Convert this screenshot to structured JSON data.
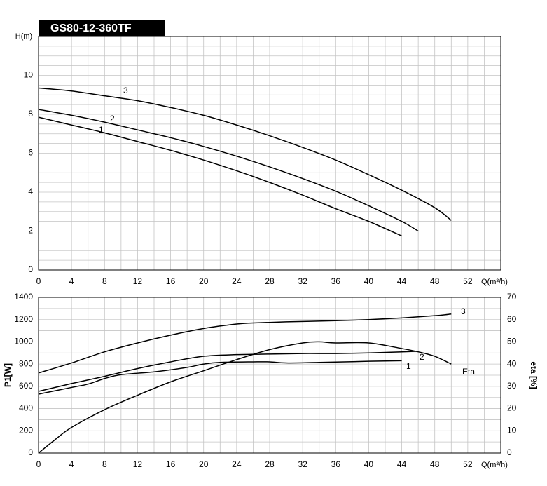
{
  "chart_data": [
    {
      "type": "line",
      "title": "GS80-12-360TF",
      "x_label": "Q(m³/h)",
      "y_label": "H(m)",
      "xlim": [
        0,
        56
      ],
      "xticks": [
        0,
        4,
        8,
        12,
        16,
        20,
        24,
        28,
        32,
        36,
        40,
        44,
        48,
        52
      ],
      "ylim": [
        0,
        12
      ],
      "yticks": [
        0,
        2,
        4,
        6,
        8,
        10
      ],
      "grid": true,
      "series": [
        {
          "name": "1",
          "color": "#000000",
          "x": [
            0,
            4,
            8,
            12,
            16,
            20,
            24,
            28,
            32,
            36,
            40,
            44
          ],
          "values": [
            7.85,
            7.45,
            7.05,
            6.6,
            6.15,
            5.65,
            5.1,
            4.5,
            3.85,
            3.15,
            2.5,
            1.75
          ]
        },
        {
          "name": "2",
          "color": "#000000",
          "x": [
            0,
            4,
            8,
            12,
            16,
            20,
            24,
            28,
            32,
            36,
            40,
            44,
            46
          ],
          "values": [
            8.25,
            7.95,
            7.6,
            7.2,
            6.8,
            6.35,
            5.85,
            5.3,
            4.7,
            4.05,
            3.3,
            2.5,
            2.0
          ]
        },
        {
          "name": "3",
          "color": "#000000",
          "x": [
            0,
            4,
            8,
            12,
            16,
            20,
            24,
            28,
            32,
            36,
            40,
            44,
            48,
            50
          ],
          "values": [
            9.35,
            9.2,
            8.95,
            8.7,
            8.35,
            7.95,
            7.45,
            6.9,
            6.3,
            5.65,
            4.9,
            4.1,
            3.2,
            2.55
          ]
        }
      ]
    },
    {
      "type": "line",
      "x_label": "Q(m³/h)",
      "y_label": "P1[W]",
      "y2_label": "eta [%]",
      "xlim": [
        0,
        56
      ],
      "xticks": [
        0,
        4,
        8,
        12,
        16,
        20,
        24,
        28,
        32,
        36,
        40,
        44,
        48,
        52
      ],
      "ylim": [
        0,
        1400
      ],
      "yticks": [
        0,
        200,
        400,
        600,
        800,
        1000,
        1200,
        1400
      ],
      "y2lim": [
        0,
        70
      ],
      "y2ticks": [
        0,
        10,
        20,
        30,
        40,
        50,
        60,
        70
      ],
      "grid": true,
      "series": [
        {
          "name": "1",
          "color": "#000000",
          "x": [
            0,
            4,
            6,
            8,
            10,
            14,
            18,
            20,
            22,
            26,
            28,
            30,
            34,
            40,
            44
          ],
          "values": [
            530,
            590,
            620,
            670,
            705,
            730,
            770,
            800,
            815,
            820,
            820,
            810,
            815,
            825,
            830
          ]
        },
        {
          "name": "2",
          "color": "#000000",
          "x": [
            0,
            4,
            8,
            12,
            16,
            20,
            24,
            28,
            32,
            36,
            40,
            44,
            46
          ],
          "values": [
            555,
            625,
            690,
            760,
            820,
            870,
            885,
            890,
            895,
            895,
            900,
            910,
            915
          ]
        },
        {
          "name": "3",
          "color": "#000000",
          "x": [
            0,
            4,
            8,
            12,
            16,
            20,
            24,
            26,
            30,
            36,
            40,
            44,
            48,
            50
          ],
          "values": [
            720,
            810,
            910,
            990,
            1060,
            1120,
            1160,
            1170,
            1180,
            1190,
            1200,
            1215,
            1235,
            1250
          ]
        },
        {
          "name": "Eta",
          "color": "#000000",
          "axis": "y2",
          "x": [
            0,
            2,
            4,
            8,
            12,
            16,
            20,
            24,
            28,
            32,
            34,
            36,
            40,
            44,
            46,
            48,
            50
          ],
          "values": [
            0,
            6,
            11.5,
            19.5,
            26,
            32,
            37,
            42,
            46.5,
            49.5,
            50,
            49.5,
            49.5,
            47,
            45.5,
            43.5,
            40
          ]
        }
      ]
    }
  ]
}
